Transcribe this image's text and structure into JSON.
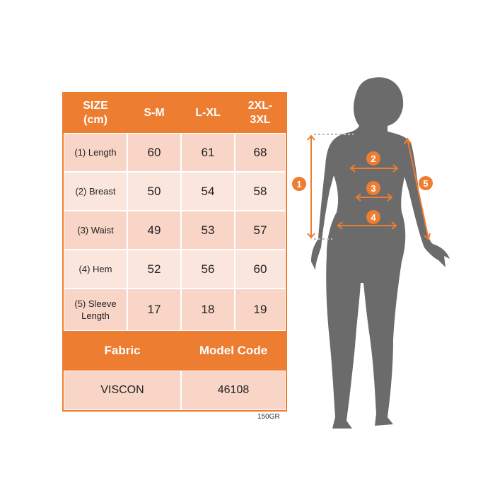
{
  "table": {
    "headers": [
      "SIZE (cm)",
      "S-M",
      "L-XL",
      "2XL-3XL"
    ],
    "rows": [
      {
        "label": "(1) Length",
        "values": [
          "60",
          "61",
          "68"
        ]
      },
      {
        "label": "(2) Breast",
        "values": [
          "50",
          "54",
          "58"
        ]
      },
      {
        "label": "(3) Waist",
        "values": [
          "49",
          "53",
          "57"
        ]
      },
      {
        "label": "(4) Hem",
        "values": [
          "52",
          "56",
          "60"
        ]
      },
      {
        "label": "(5) Sleeve Length",
        "values": [
          "17",
          "18",
          "19"
        ]
      }
    ],
    "fabric_label": "Fabric",
    "model_code_label": "Model Code",
    "fabric": "VISCON",
    "model_code": "46108"
  },
  "weight": "150GR",
  "figure": {
    "markers": [
      "1",
      "2",
      "3",
      "4",
      "5"
    ]
  },
  "colors": {
    "accent": "#ED7D31",
    "cell_dark": "#F8D5C6",
    "cell_light": "#FBE6DD",
    "silhouette": "#6B6B6B"
  }
}
